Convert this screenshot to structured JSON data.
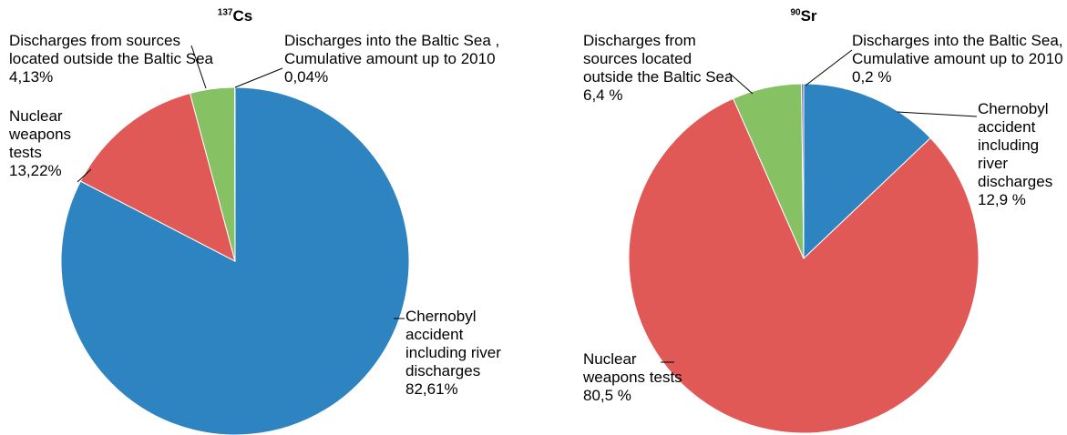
{
  "chart_data": [
    {
      "type": "pie",
      "title_mass_number": "137",
      "title_element": "Cs",
      "categories": [
        "Chernobyl accident including river discharges",
        "Nuclear weapons tests",
        "Discharges from sources located outside the Baltic Sea",
        "Discharges into the Baltic Sea , Cumulative amount up to 2010"
      ],
      "values": [
        82.61,
        13.22,
        4.13,
        0.04
      ],
      "value_labels": [
        "82,61%",
        "13,22%",
        "4,13%",
        "0,04%"
      ],
      "colors": [
        "#2e83c1",
        "#e05957",
        "#86c163",
        "#7a5fa6"
      ]
    },
    {
      "type": "pie",
      "title_mass_number": "90",
      "title_element": "Sr",
      "categories": [
        "Chernobyl accident including river discharges",
        "Nuclear weapons tests",
        "Discharges from sources located outside the Baltic Sea",
        "Discharges into the Baltic Sea, Cumulative amount up to 2010"
      ],
      "values": [
        12.9,
        80.5,
        6.4,
        0.2
      ],
      "value_labels": [
        "12,9 %",
        "80,5 %",
        "6,4 %",
        "0,2 %"
      ],
      "colors": [
        "#2e83c1",
        "#e05957",
        "#86c163",
        "#7a5fa6"
      ]
    }
  ]
}
